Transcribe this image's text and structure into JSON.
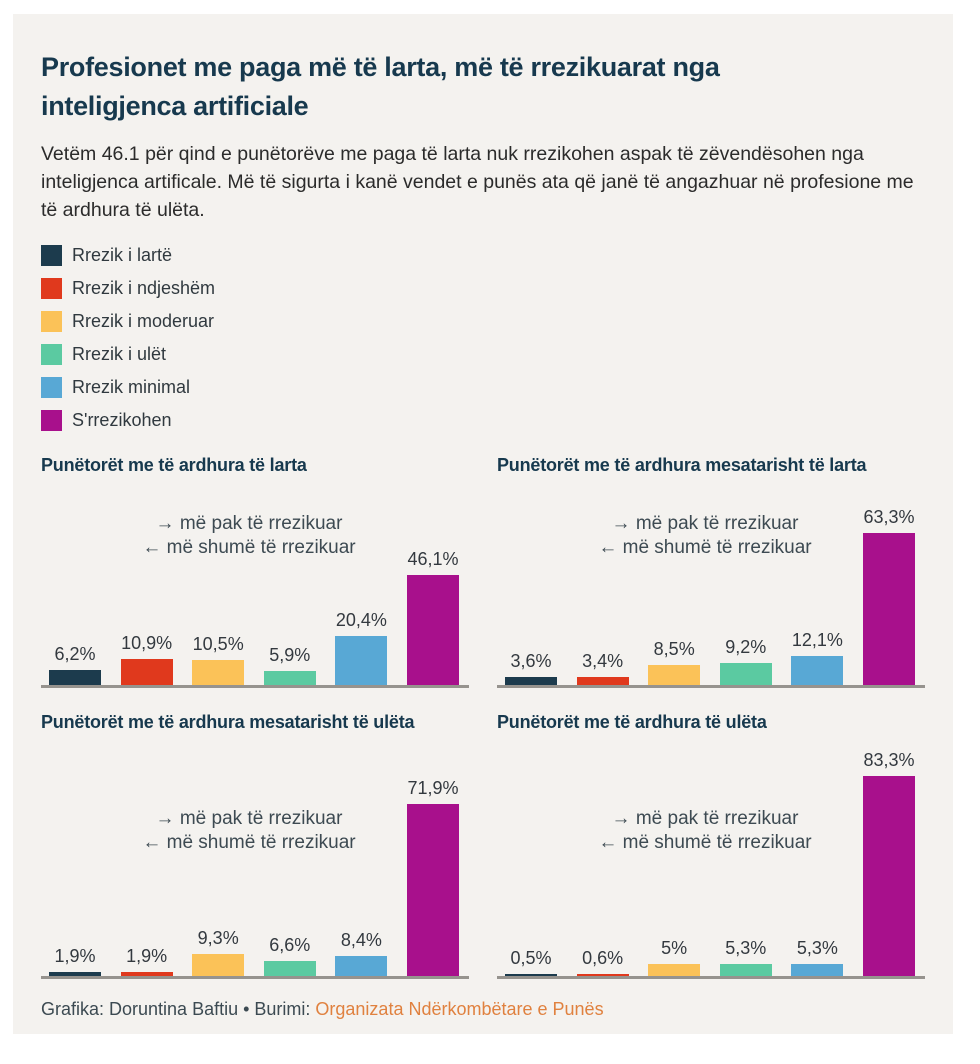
{
  "page": {
    "title": "Profesionet me paga më të larta, më të rrezikuarat nga inteligjenca artificiale",
    "subtitle": "Vetëm 46.1 për qind e punëtorëve me paga të larta nuk rrezikohen aspak të zëvendësohen nga inteligjenca artificale. Më të sigurta i kanë vendet e punës ata që janë të angazhuar në profesione me të ardhura të ulëta.",
    "panel_background": "#f4f2ef"
  },
  "legend": {
    "items": [
      {
        "label": "Rrezik i lartë",
        "color": "#1c3b4d"
      },
      {
        "label": "Rrezik i ndjeshëm",
        "color": "#e0391d"
      },
      {
        "label": "Rrezik i moderuar",
        "color": "#fbc258"
      },
      {
        "label": "Rrezik i ulët",
        "color": "#5bcaa1"
      },
      {
        "label": "Rrezik minimal",
        "color": "#58a8d5"
      },
      {
        "label": "S'rrezikohen",
        "color": "#a8108c"
      }
    ]
  },
  "annotation": {
    "line1": "→ më pak të rrezikuar",
    "line2": "← më shumë të rrezikuar"
  },
  "chart_data": [
    {
      "type": "bar",
      "title": "Punëtorët me të ardhura të larta",
      "categories": [
        "Rrezik i lartë",
        "Rrezik i ndjeshëm",
        "Rrezik i moderuar",
        "Rrezik i ulët",
        "Rrezik minimal",
        "S'rrezikohen"
      ],
      "values": [
        6.2,
        10.9,
        10.5,
        5.9,
        20.4,
        46.1
      ],
      "value_labels": [
        "6,2%",
        "10,9%",
        "10,5%",
        "5,9%",
        "20,4%",
        "46,1%"
      ],
      "unit": "%",
      "ylim": [
        0,
        85
      ],
      "grid": false,
      "legend_position": "above-charts"
    },
    {
      "type": "bar",
      "title": "Punëtorët me të ardhura mesatarisht të larta",
      "categories": [
        "Rrezik i lartë",
        "Rrezik i ndjeshëm",
        "Rrezik i moderuar",
        "Rrezik i ulët",
        "Rrezik minimal",
        "S'rrezikohen"
      ],
      "values": [
        3.6,
        3.4,
        8.5,
        9.2,
        12.1,
        63.3
      ],
      "value_labels": [
        "3,6%",
        "3,4%",
        "8,5%",
        "9,2%",
        "12,1%",
        "63,3%"
      ],
      "unit": "%",
      "ylim": [
        0,
        85
      ],
      "grid": false,
      "legend_position": "above-charts"
    },
    {
      "type": "bar",
      "title": "Punëtorët me të ardhura mesatarisht të ulëta",
      "categories": [
        "Rrezik i lartë",
        "Rrezik i ndjeshëm",
        "Rrezik i moderuar",
        "Rrezik i ulët",
        "Rrezik minimal",
        "S'rrezikohen"
      ],
      "values": [
        1.9,
        1.9,
        9.3,
        6.6,
        8.4,
        71.9
      ],
      "value_labels": [
        "1,9%",
        "1,9%",
        "9,3%",
        "6,6%",
        "8,4%",
        "71,9%"
      ],
      "unit": "%",
      "ylim": [
        0,
        85
      ],
      "grid": false,
      "legend_position": "above-charts"
    },
    {
      "type": "bar",
      "title": "Punëtorët me të ardhura të ulëta",
      "categories": [
        "Rrezik i lartë",
        "Rrezik i ndjeshëm",
        "Rrezik i moderuar",
        "Rrezik i ulët",
        "Rrezik minimal",
        "S'rrezikohen"
      ],
      "values": [
        0.5,
        0.6,
        5,
        5.3,
        5.3,
        83.3
      ],
      "value_labels": [
        "0,5%",
        "0,6%",
        "5%",
        "5,3%",
        "5,3%",
        "83,3%"
      ],
      "unit": "%",
      "ylim": [
        0,
        85
      ],
      "grid": false,
      "legend_position": "above-charts"
    }
  ],
  "footer": {
    "credit": "Grafika: Doruntina Baftiu • Burimi: ",
    "source_link": "Organizata Ndërkombëtare e Punës",
    "link_color": "#e0813f"
  }
}
